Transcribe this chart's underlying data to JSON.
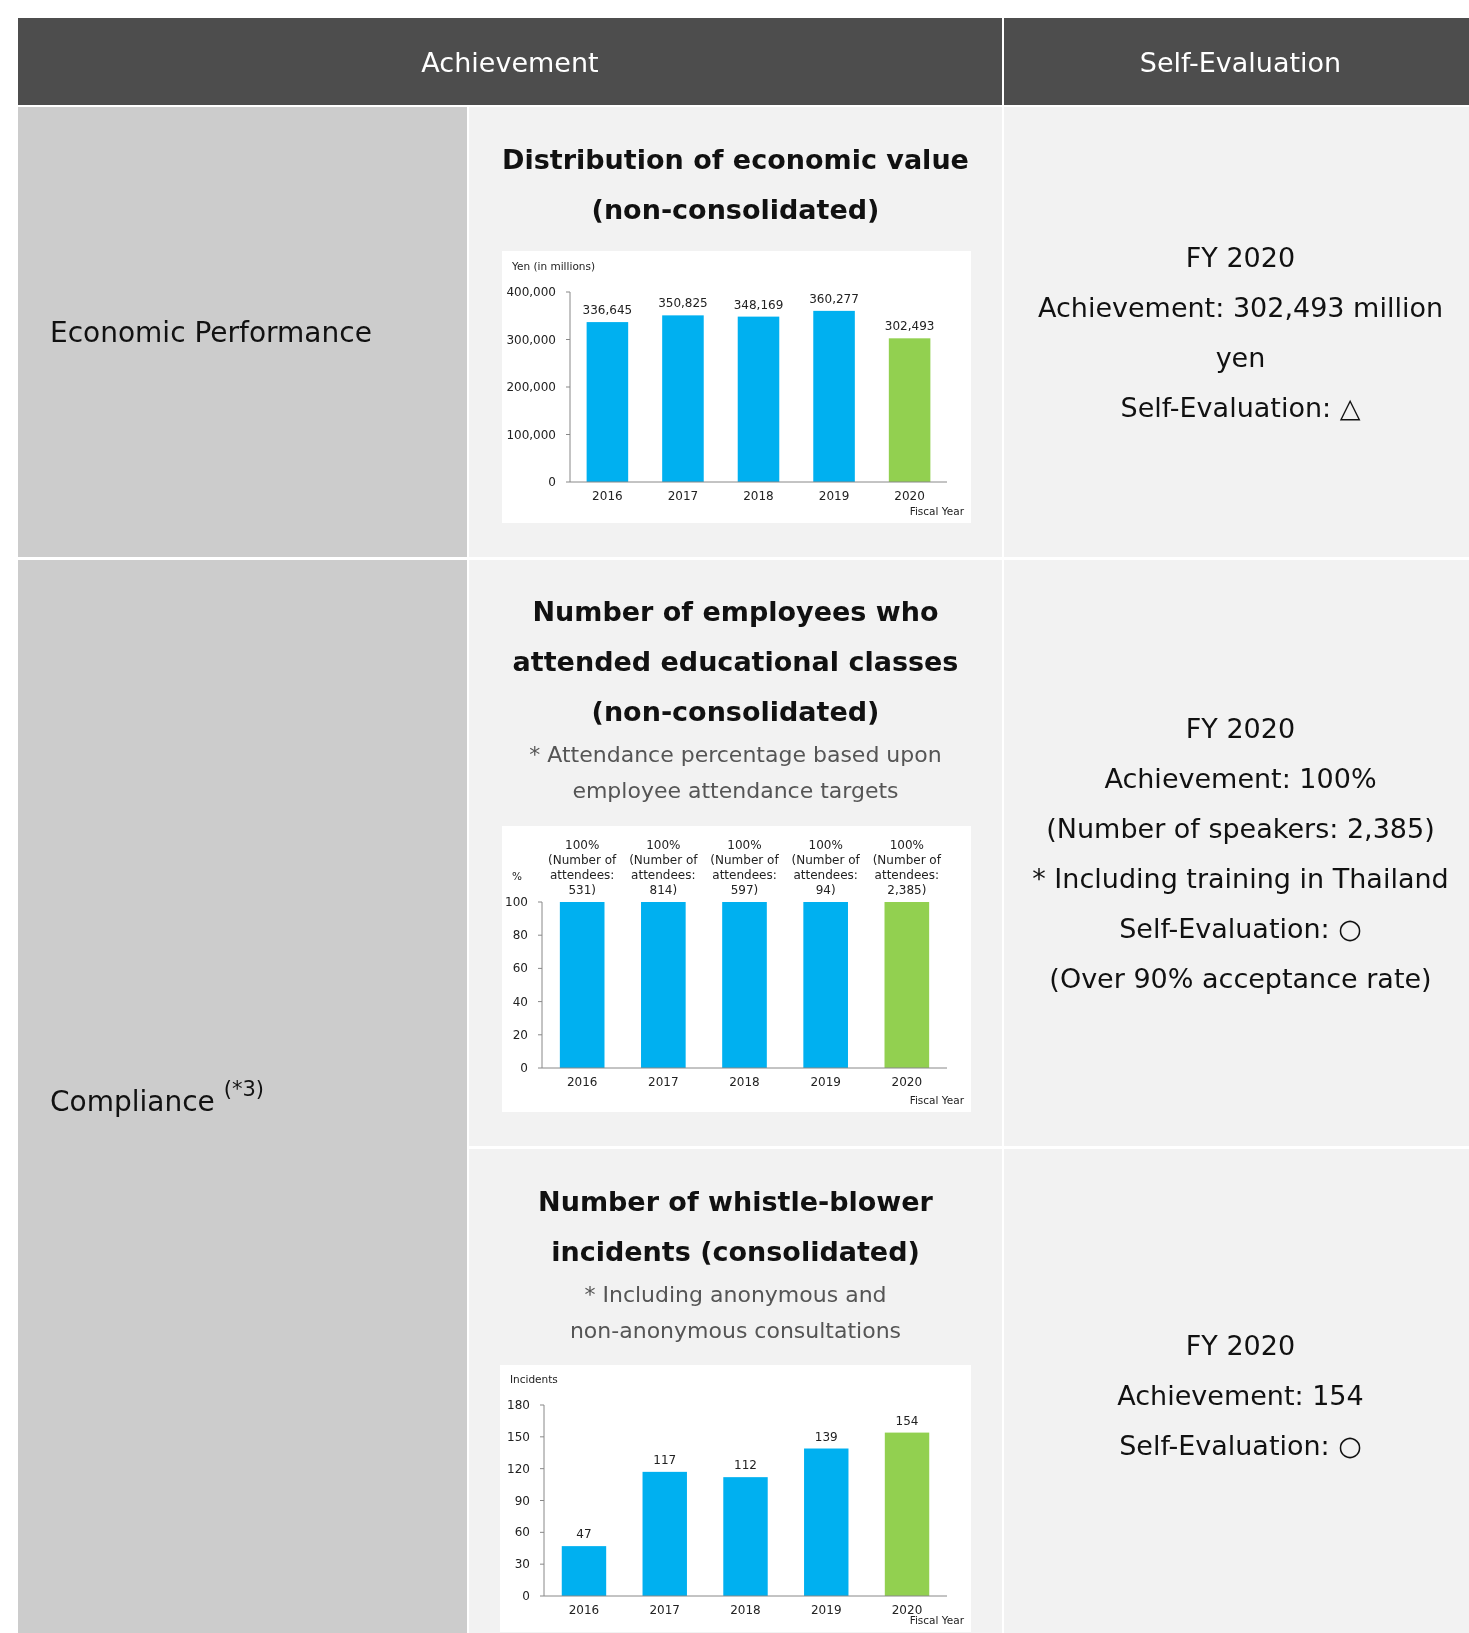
{
  "chart_data": [
    {
      "type": "other",
      "title": "Achievement"
    },
    {
      "type": "other",
      "title": "Self-Evaluation"
    },
    {
      "type": "other",
      "title": "Economic Performance"
    },
    {
      "type": "bar",
      "title": "Distribution of economic value (non-consolidated)",
      "ylabel": "Yen (in millions)",
      "xlabel": "Fiscal Year",
      "categories": [
        "2016",
        "2017",
        "2018",
        "2019",
        "2020"
      ],
      "values": [
        336645,
        350825,
        348169,
        360277,
        302493
      ],
      "colors": [
        "#00b0f0",
        "#00b0f0",
        "#00b0f0",
        "#00b0f0",
        "#92d050"
      ],
      "value_labels": [
        "336,645",
        "350,825",
        "348,169",
        "360,277",
        "302,493"
      ],
      "ylim": [
        0,
        400000
      ],
      "yticks": [
        0,
        {
          "value": 100000,
          "label": "100,000"
        },
        {
          "value": 200000,
          "label": "200,000"
        },
        {
          "value": 300000,
          "label": "300,000"
        },
        {
          "value": 400000,
          "label": "400,000"
        }
      ]
    },
    {
      "type": "other",
      "annotations": [
        "FY 2020",
        "Achievement: 302,493 million yen",
        "Self-Evaluation: △"
      ]
    },
    {
      "type": "other",
      "title": "Compliance $^{(*3)}$"
    },
    {
      "type": "bar",
      "title": "Number of employees who attended educational classes (non-consolidated)",
      "subtitle": "* Attendance percentage based upon employee attendance targets",
      "ylabel": "%",
      "xlabel": "Fiscal Year",
      "categories": [
        "2016",
        "2017",
        "2018",
        "2019",
        "2020"
      ],
      "values": [
        100,
        100,
        100,
        100,
        100
      ],
      "colors": [
        "#00b0f0",
        "#00b0f0",
        "#00b0f0",
        "#00b0f0",
        "#92d050"
      ],
      "value_labels": [
        "100% (Number of attendees: 531)",
        "100% (Number of attendees: 814)",
        "100% (Number of attendees: 597)",
        "100% (Number of attendees: 94)",
        "100% (Number of attendees: 2,385)"
      ],
      "ylim": [
        0,
        100
      ],
      "yticks": [
        0,
        20,
        40,
        60,
        80,
        100
      ]
    },
    {
      "type": "other",
      "annotations": [
        "FY 2020",
        "Achievement: 100%",
        "(Number of speakers: 2,385)",
        "* Including training in Thailand",
        "Self-Evaluation: ○",
        "(Over 90% acceptance rate)"
      ]
    },
    {
      "type": "bar",
      "title": "Number of whistle-blower incidents (consolidated)",
      "subtitle": "* Including anonymous and non-anonymous consultations",
      "ylabel": "Incidents",
      "xlabel": "Fiscal Year",
      "categories": [
        "2016",
        "2017",
        "2018",
        "2019",
        "2020"
      ],
      "values": [
        47,
        117,
        112,
        139,
        154
      ],
      "colors": [
        "#00b0f0",
        "#00b0f0",
        "#00b0f0",
        "#00b0f0",
        "#92d050"
      ],
      "data_labels": true,
      "ylim": [
        0,
        180
      ],
      "yticks": [
        0,
        30,
        60,
        90,
        120,
        150,
        180
      ]
    },
    {
      "type": "other",
      "annotations": [
        "FY 2020",
        "Achievement: 154",
        "Self-Evaluation: ○"
      ]
    }
  ]
}
